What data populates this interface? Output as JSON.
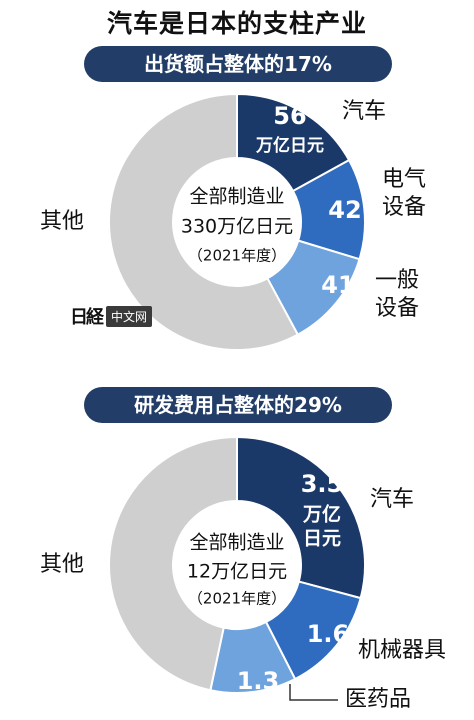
{
  "title": "汽车是日本的支柱产业",
  "watermark": {
    "mark": "日経",
    "box_text": "中文网"
  },
  "chart_data": [
    {
      "type": "pie",
      "variant": "donut",
      "banner": "出货额占整体的17%",
      "center_lines": [
        "全部制造业",
        "330万亿日元",
        "（2021年度）"
      ],
      "total": 330,
      "slices": [
        {
          "label": "汽车",
          "value": 56,
          "value_lines": [
            "56",
            "万亿日元"
          ],
          "label_lines": [
            "汽车"
          ],
          "color": "#1b3968"
        },
        {
          "label": "电气设备",
          "value": 42,
          "value_lines": [
            "42"
          ],
          "label_lines": [
            "电气",
            "设备"
          ],
          "color": "#2f6cc0"
        },
        {
          "label": "一般设备",
          "value": 41,
          "value_lines": [
            "41"
          ],
          "label_lines": [
            "一般",
            "设备"
          ],
          "color": "#6fa3de"
        },
        {
          "label": "其他",
          "value": 191,
          "value_lines": [],
          "label_lines": [
            "其他"
          ],
          "color": "#cfcfcf"
        }
      ]
    },
    {
      "type": "pie",
      "variant": "donut",
      "banner": "研发费用占整体的29%",
      "center_lines": [
        "全部制造业",
        "12万亿日元",
        "（2021年度）"
      ],
      "total": 12,
      "slices": [
        {
          "label": "汽车",
          "value": 3.5,
          "value_lines": [
            "3.5",
            "万亿",
            "日元"
          ],
          "label_lines": [
            "汽车"
          ],
          "color": "#1b3968"
        },
        {
          "label": "机械器具",
          "value": 1.6,
          "value_lines": [
            "1.6"
          ],
          "label_lines": [
            "机械器具"
          ],
          "color": "#2f6cc0"
        },
        {
          "label": "医药品",
          "value": 1.3,
          "value_lines": [
            "1.3"
          ],
          "label_lines": [
            "医药品"
          ],
          "color": "#6fa3de"
        },
        {
          "label": "其他",
          "value": 5.6,
          "value_lines": [],
          "label_lines": [
            "其他"
          ],
          "color": "#cfcfcf"
        }
      ]
    }
  ]
}
